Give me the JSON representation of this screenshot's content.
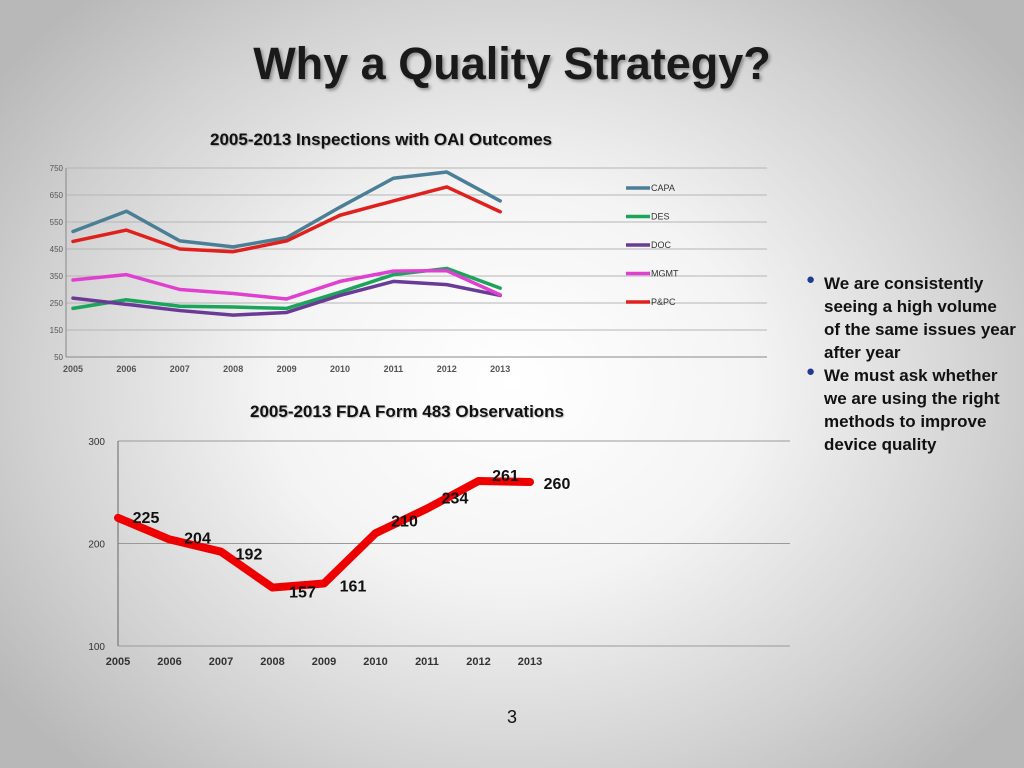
{
  "slide": {
    "title": "Why a Quality Strategy?",
    "page_number": "3"
  },
  "bullets": [
    "We are consistently seeing a high volume of the same issues year after year",
    "We must ask whether we are using the right methods to improve device quality"
  ],
  "colors": {
    "CAPA": "#4a7f96",
    "DES": "#1aa55a",
    "DOC": "#6a3b96",
    "MGMT": "#e040d0",
    "P&PC": "#e0201c",
    "fda_line": "#ee0000",
    "bullet": "#1f3a93"
  },
  "chart_data": [
    {
      "type": "line",
      "title": "2005-2013 Inspections with OAI Outcomes",
      "x": [
        "2005",
        "2006",
        "2007",
        "2008",
        "2009",
        "2010",
        "2011",
        "2012",
        "2013"
      ],
      "yticks": [
        "50",
        "150",
        "250",
        "350",
        "450",
        "550",
        "650",
        "750"
      ],
      "ylim": [
        50,
        750
      ],
      "grid": true,
      "legend_position": "right",
      "series": [
        {
          "name": "CAPA",
          "values": [
            515,
            590,
            480,
            458,
            492,
            605,
            712,
            735,
            628
          ]
        },
        {
          "name": "DES",
          "values": [
            230,
            262,
            238,
            235,
            230,
            290,
            355,
            378,
            305
          ]
        },
        {
          "name": "DOC",
          "values": [
            268,
            245,
            222,
            205,
            215,
            278,
            330,
            318,
            278
          ]
        },
        {
          "name": "MGMT",
          "values": [
            335,
            355,
            300,
            285,
            265,
            330,
            368,
            370,
            280
          ]
        },
        {
          "name": "P&PC",
          "values": [
            478,
            520,
            450,
            440,
            480,
            575,
            628,
            680,
            588
          ]
        }
      ]
    },
    {
      "type": "line",
      "title": "2005-2013 FDA Form 483 Observations",
      "x": [
        "2005",
        "2006",
        "2007",
        "2008",
        "2009",
        "2010",
        "2011",
        "2012",
        "2013"
      ],
      "yticks": [
        "100",
        "200",
        "300"
      ],
      "ylim": [
        100,
        300
      ],
      "grid": true,
      "series": [
        {
          "values": [
            225,
            204,
            192,
            157,
            161,
            210,
            234,
            261,
            260
          ]
        }
      ],
      "data_labels": [
        "225",
        "204",
        "192",
        "157",
        "161",
        "210",
        "234",
        "261",
        "260"
      ]
    }
  ]
}
